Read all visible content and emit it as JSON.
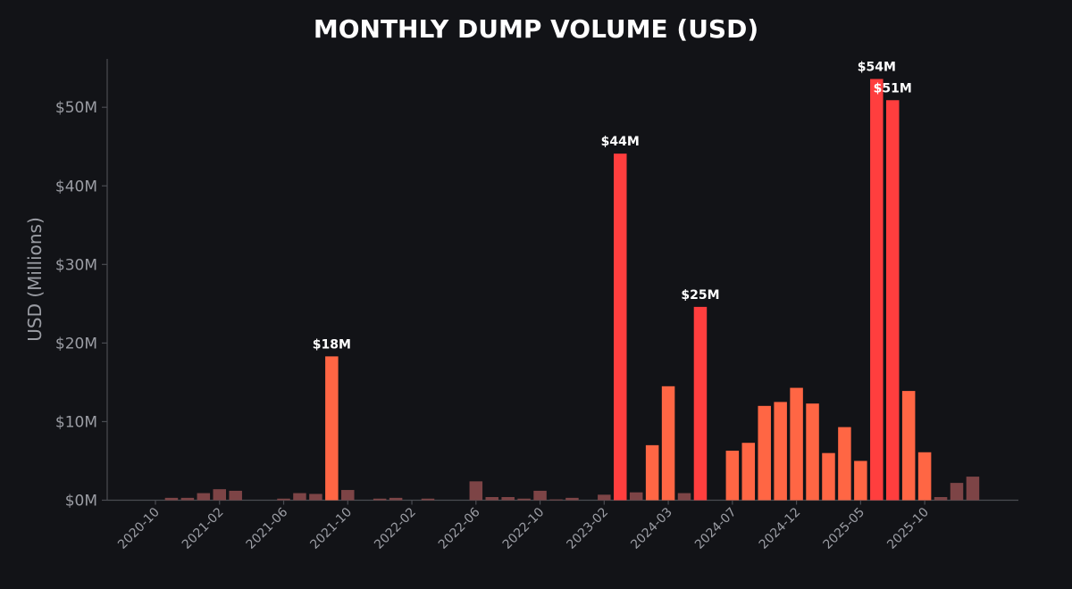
{
  "colors": {
    "background": "#121317",
    "axis": "#4a4c52",
    "text": "#9b9da4",
    "title": "#ffffff",
    "bar_low": "#7d4446",
    "bar_mid": "#ff6644",
    "bar_high": "#ff3e3e"
  },
  "chart_data": {
    "type": "bar",
    "title": "MONTHLY DUMP VOLUME (USD)",
    "xlabel": "",
    "ylabel": "USD (Millions)",
    "ylim": [
      0,
      56
    ],
    "yticks": [
      0,
      10,
      20,
      30,
      40,
      50
    ],
    "ytick_labels": [
      "$0M",
      "$10M",
      "$20M",
      "$30M",
      "$40M",
      "$50M"
    ],
    "xtick_labels": [
      {
        "index": 0,
        "label": "2020-10"
      },
      {
        "index": 4,
        "label": "2021-02"
      },
      {
        "index": 8,
        "label": "2021-06"
      },
      {
        "index": 12,
        "label": "2021-10"
      },
      {
        "index": 16,
        "label": "2022-02"
      },
      {
        "index": 20,
        "label": "2022-06"
      },
      {
        "index": 24,
        "label": "2022-10"
      },
      {
        "index": 28,
        "label": "2023-02"
      },
      {
        "index": 32,
        "label": "2024-03"
      },
      {
        "index": 36,
        "label": "2024-07"
      },
      {
        "index": 40,
        "label": "2024-12"
      },
      {
        "index": 44,
        "label": "2025-05"
      },
      {
        "index": 48,
        "label": "2025-10"
      }
    ],
    "values": [
      0,
      0.3,
      0.3,
      0.9,
      1.4,
      1.2,
      0,
      0,
      0.2,
      0.9,
      0.8,
      18.3,
      1.3,
      0,
      0.2,
      0.3,
      0,
      0.2,
      0,
      0,
      2.4,
      0.4,
      0.4,
      0.2,
      1.2,
      0.1,
      0.3,
      0,
      0.7,
      44.1,
      1.0,
      7.0,
      14.5,
      0.9,
      24.6,
      0,
      6.3,
      7.3,
      12.0,
      12.5,
      14.3,
      12.3,
      6.0,
      9.3,
      5.0,
      53.6,
      50.9,
      13.9,
      6.1,
      0.4,
      2.2,
      3.0
    ],
    "data_labels": [
      {
        "index": 11,
        "label": "$18M"
      },
      {
        "index": 29,
        "label": "$44M"
      },
      {
        "index": 34,
        "label": "$25M"
      },
      {
        "index": 45,
        "label": "$54M"
      },
      {
        "index": 46,
        "label": "$51M"
      }
    ]
  }
}
